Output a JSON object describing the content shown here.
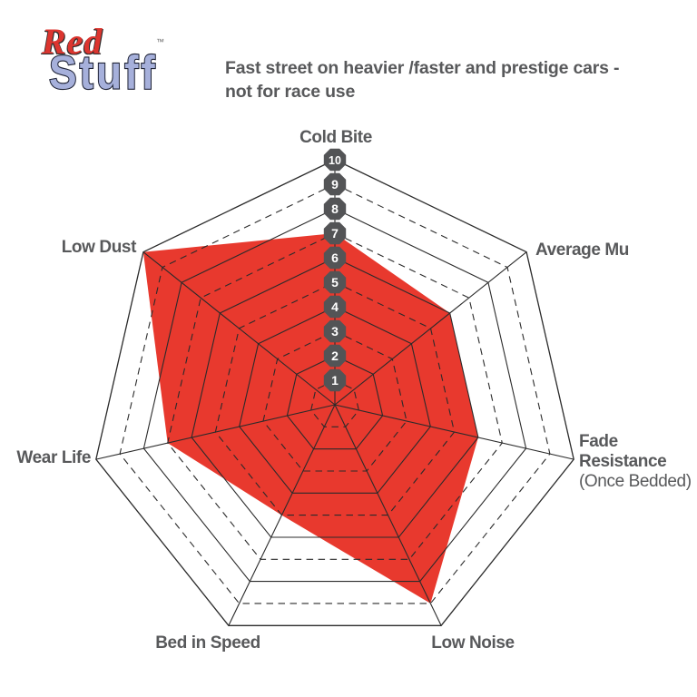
{
  "logo": {
    "line1": "Red",
    "line2": "Stuff",
    "trademark": "™"
  },
  "subtitle": "Fast street on heavier /faster and prestige cars - not for race use",
  "chart_data": {
    "type": "radar",
    "title": "Fast street on heavier /faster and prestige cars - not for race use",
    "axes": [
      "Cold Bite",
      "Average Mu",
      "Fade Resistance",
      "Low Noise",
      "Bed in Speed",
      "Wear Life",
      "Low Dust"
    ],
    "axis_sublabels": {
      "Fade Resistance": "(Once Bedded)"
    },
    "values": [
      7,
      6,
      6,
      9,
      5,
      7,
      10
    ],
    "scale": {
      "min": 1,
      "max": 10,
      "tick_labels": [
        "1",
        "2",
        "3",
        "4",
        "5",
        "6",
        "7",
        "8",
        "9",
        "10"
      ]
    },
    "grid": {
      "rings": 10,
      "solid_rings": "even",
      "dashed_rings": "odd",
      "spokes": 7
    },
    "legend_position": "none",
    "colors": {
      "series_fill": "#E8392E",
      "grid_line": "#2B2B2B",
      "axis_label": "#58595B",
      "tick_badge_fill": "#535456",
      "tick_badge_text": "#FFFFFF",
      "background": "#FFFFFF"
    }
  }
}
